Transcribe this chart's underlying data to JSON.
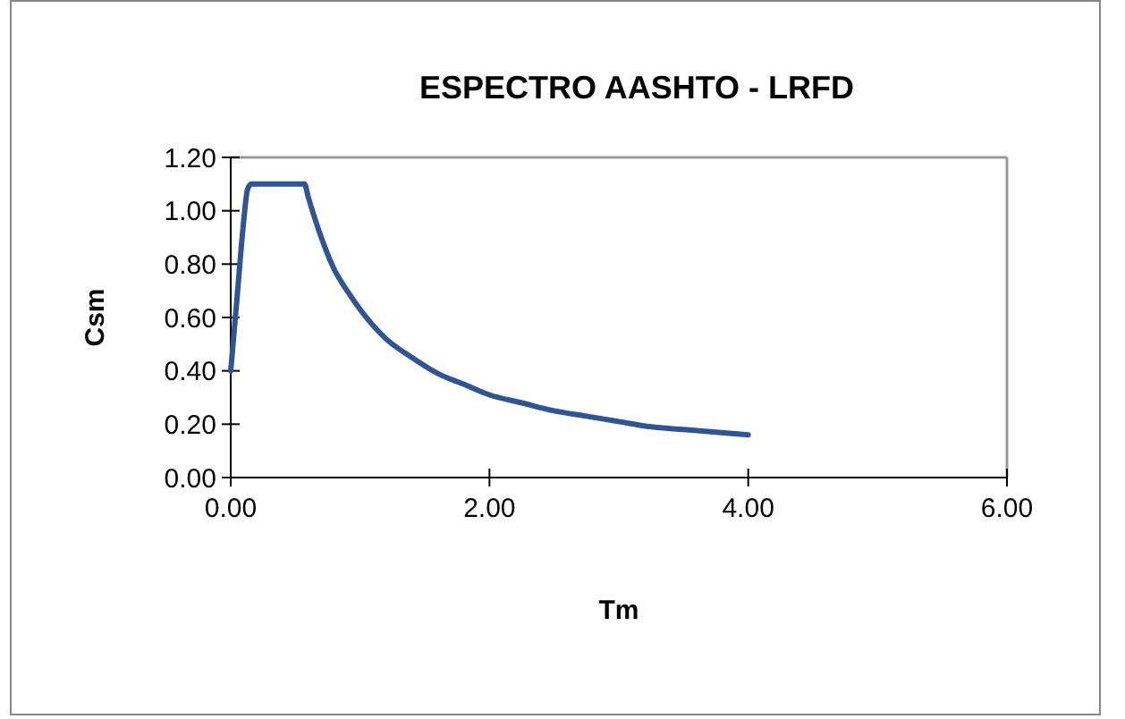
{
  "chart_data": {
    "type": "line",
    "title": "ESPECTRO AASHTO - LRFD",
    "xlabel": "Tm",
    "ylabel": "Csm",
    "series": [
      {
        "color": "#2f5597",
        "x": [
          0,
          0.05,
          0.1,
          0.13,
          0.16,
          0.57,
          0.6,
          0.7,
          0.8,
          0.9,
          1.0,
          1.2,
          1.4,
          1.6,
          1.8,
          2.0,
          2.25,
          2.5,
          2.75,
          3.0,
          3.25,
          3.5,
          3.75,
          4.0
        ],
        "values": [
          0.4,
          0.68,
          0.96,
          1.08,
          1.1,
          1.1,
          1.05,
          0.9,
          0.78,
          0.7,
          0.63,
          0.52,
          0.45,
          0.39,
          0.35,
          0.31,
          0.28,
          0.25,
          0.23,
          0.21,
          0.19,
          0.18,
          0.17,
          0.16
        ]
      }
    ],
    "xlim": [
      0,
      6
    ],
    "xticks": [
      {
        "value": 0,
        "label": "0.00"
      },
      {
        "value": 2,
        "label": "2.00"
      },
      {
        "value": 4,
        "label": "4.00"
      },
      {
        "value": 6,
        "label": "6.00"
      }
    ],
    "ylim": [
      0,
      1.2
    ],
    "yticks": [
      {
        "value": 0,
        "label": "0.00"
      },
      {
        "value": 0.2,
        "label": "0.20"
      },
      {
        "value": 0.4,
        "label": "0.40"
      },
      {
        "value": 0.6,
        "label": "0.60"
      },
      {
        "value": 0.8,
        "label": "0.80"
      },
      {
        "value": 1.0,
        "label": "1.00"
      },
      {
        "value": 1.2,
        "label": "1.20"
      }
    ],
    "grid": false,
    "marker": "none",
    "line_style": "solid"
  }
}
